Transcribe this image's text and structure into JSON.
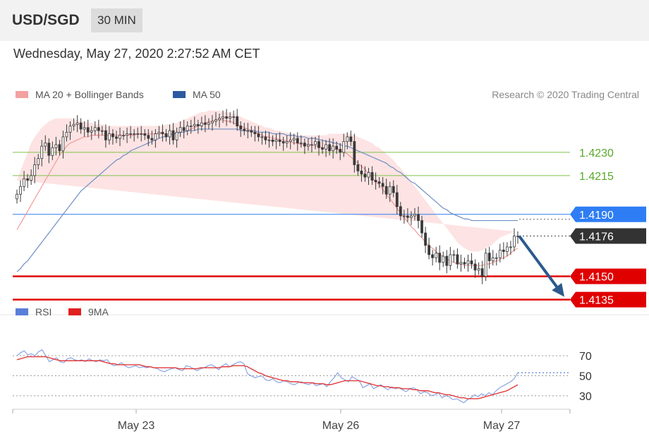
{
  "header": {
    "pair": "USD/SGD",
    "timeframe": "30 MIN"
  },
  "datetime": "Wednesday, May 27, 2020 2:27:52 AM CET",
  "colors": {
    "bullish_candle": "#3a3a3a",
    "ma20_band": "#f4a0a0",
    "ma50": "#2c5aa0",
    "support": "#e00000",
    "resistance": "#7dc34a",
    "pivot": "#2f7df5",
    "price_tag": "#333333",
    "rsi": "#5a7fd8",
    "rsi_ma": "#e02020",
    "arrow": "#2c5a8c"
  },
  "chart_data": [
    {
      "type": "candlestick",
      "title": "USD/SGD",
      "legend": [
        {
          "name": "MA 20 + Bollinger Bands",
          "color": "#f4a0a0"
        },
        {
          "name": "MA 50",
          "color": "#2c5aa0"
        }
      ],
      "legend_position": "top-left",
      "attribution": "Research © 2020 Trading Central",
      "x_ticks": [
        "May 23",
        "May 26",
        "May 27"
      ],
      "ylim": [
        1.4128,
        1.426
      ],
      "current_price": 1.4176,
      "levels": [
        {
          "value": 1.423,
          "label": "1.4230",
          "kind": "resistance"
        },
        {
          "value": 1.4215,
          "label": "1.4215",
          "kind": "resistance"
        },
        {
          "value": 1.419,
          "label": "1.4190",
          "kind": "pivot"
        },
        {
          "value": 1.4176,
          "label": "1.4176",
          "kind": "current"
        },
        {
          "value": 1.415,
          "label": "1.4150",
          "kind": "support"
        },
        {
          "value": 1.4135,
          "label": "1.4135",
          "kind": "support"
        }
      ],
      "forecast_arrow": {
        "from": 1.4176,
        "to": 1.4135
      },
      "close": [
        1.4203,
        1.4208,
        1.4213,
        1.4212,
        1.4215,
        1.4222,
        1.4226,
        1.4234,
        1.4236,
        1.4228,
        1.4233,
        1.4235,
        1.4231,
        1.424,
        1.4243,
        1.4247,
        1.4248,
        1.4249,
        1.4245,
        1.4246,
        1.4243,
        1.4244,
        1.4246,
        1.4244,
        1.4244,
        1.4238,
        1.4242,
        1.424,
        1.4239,
        1.4241,
        1.4241,
        1.4242,
        1.4242,
        1.4242,
        1.4242,
        1.4242,
        1.4241,
        1.4239,
        1.4238,
        1.4242,
        1.4243,
        1.4242,
        1.424,
        1.4244,
        1.4238,
        1.4243,
        1.4246,
        1.4244,
        1.4247,
        1.4247,
        1.4248,
        1.4247,
        1.4249,
        1.4248,
        1.4249,
        1.425,
        1.4251,
        1.4252,
        1.4253,
        1.4252,
        1.4253,
        1.4253,
        1.4247,
        1.4245,
        1.4244,
        1.4244,
        1.4243,
        1.4242,
        1.424,
        1.424,
        1.4238,
        1.4238,
        1.4237,
        1.4238,
        1.4237,
        1.4236,
        1.4237,
        1.4238,
        1.4239,
        1.4236,
        1.4236,
        1.4234,
        1.4235,
        1.4235,
        1.4237,
        1.4233,
        1.4232,
        1.4235,
        1.4231,
        1.4234,
        1.4232,
        1.423,
        1.4237,
        1.424,
        1.4237,
        1.4222,
        1.4218,
        1.4216,
        1.4214,
        1.4217,
        1.4212,
        1.4211,
        1.421,
        1.4208,
        1.4203,
        1.4208,
        1.4204,
        1.4195,
        1.4189,
        1.4189,
        1.4188,
        1.4189,
        1.419,
        1.4186,
        1.4178,
        1.417,
        1.4164,
        1.4162,
        1.4165,
        1.4159,
        1.4163,
        1.4157,
        1.4164,
        1.4164,
        1.4158,
        1.4159,
        1.4158,
        1.416,
        1.4158,
        1.4154,
        1.4155,
        1.415,
        1.4165,
        1.416,
        1.4162,
        1.4162,
        1.4167,
        1.4166,
        1.4169,
        1.4169,
        1.4176,
        1.4176
      ],
      "ma20": [
        1.418,
        1.4184,
        1.4188,
        1.4192,
        1.4196,
        1.42,
        1.4204,
        1.4208,
        1.4212,
        1.4216,
        1.422,
        1.4224,
        1.4228,
        1.4231,
        1.4234,
        1.4236,
        1.4237,
        1.4238,
        1.4239,
        1.424,
        1.424,
        1.4241,
        1.4241,
        1.4241,
        1.4241,
        1.4241,
        1.4241,
        1.4241,
        1.4241,
        1.4241,
        1.4241,
        1.4241,
        1.4241,
        1.4241,
        1.4242,
        1.4242,
        1.4242,
        1.4242,
        1.4242,
        1.4242,
        1.4242,
        1.4242,
        1.4242,
        1.4242,
        1.4242,
        1.4243,
        1.4243,
        1.4243,
        1.4244,
        1.4245,
        1.4246,
        1.4247,
        1.4248,
        1.4249,
        1.425,
        1.425,
        1.4251,
        1.4251,
        1.4251,
        1.425,
        1.425,
        1.4249,
        1.4248,
        1.4247,
        1.4246,
        1.4245,
        1.4244,
        1.4243,
        1.4242,
        1.4241,
        1.424,
        1.424,
        1.4239,
        1.4239,
        1.4238,
        1.4238,
        1.4237,
        1.4237,
        1.4236,
        1.4236,
        1.4235,
        1.4235,
        1.4235,
        1.4235,
        1.4234,
        1.4234,
        1.4233,
        1.4233,
        1.4233,
        1.4232,
        1.4232,
        1.4231,
        1.423,
        1.4229,
        1.4227,
        1.4225,
        1.4223,
        1.4221,
        1.4219,
        1.4216,
        1.4214,
        1.4211,
        1.4209,
        1.4206,
        1.4203,
        1.42,
        1.4197,
        1.4194,
        1.4191,
        1.4188,
        1.4185,
        1.4182,
        1.418,
        1.4177,
        1.4175,
        1.4172,
        1.417,
        1.4168,
        1.4166,
        1.4164,
        1.4163,
        1.4161,
        1.416,
        1.4159,
        1.4158,
        1.4158,
        1.4157,
        1.4157,
        1.4157,
        1.4157,
        1.4157,
        1.4157,
        1.4158,
        1.4158,
        1.4159,
        1.416,
        1.4161,
        1.4162,
        1.4163,
        1.4165,
        1.4167,
        1.4168
      ],
      "bb_upper": [
        1.4212,
        1.4218,
        1.4224,
        1.423,
        1.4236,
        1.424,
        1.4243,
        1.4246,
        1.4248,
        1.425,
        1.4251,
        1.4252,
        1.4252,
        1.4252,
        1.4252,
        1.4252,
        1.4251,
        1.4251,
        1.425,
        1.425,
        1.4249,
        1.4249,
        1.4248,
        1.4248,
        1.4248,
        1.4247,
        1.4247,
        1.4247,
        1.4247,
        1.4247,
        1.4247,
        1.4247,
        1.4247,
        1.4247,
        1.4247,
        1.4247,
        1.4247,
        1.4247,
        1.4247,
        1.4247,
        1.4247,
        1.4247,
        1.4248,
        1.4248,
        1.4248,
        1.4249,
        1.425,
        1.4251,
        1.4252,
        1.4253,
        1.4254,
        1.4255,
        1.4256,
        1.4256,
        1.4257,
        1.4257,
        1.4257,
        1.4257,
        1.4256,
        1.4256,
        1.4255,
        1.4255,
        1.4254,
        1.4253,
        1.4252,
        1.4251,
        1.425,
        1.4249,
        1.4248,
        1.4247,
        1.4246,
        1.4246,
        1.4245,
        1.4244,
        1.4244,
        1.4243,
        1.4243,
        1.4242,
        1.4242,
        1.4241,
        1.4241,
        1.4241,
        1.4241,
        1.4241,
        1.4241,
        1.4241,
        1.4241,
        1.4241,
        1.4242,
        1.4242,
        1.4242,
        1.4242,
        1.4242,
        1.4242,
        1.4242,
        1.4241,
        1.424,
        1.4239,
        1.4238,
        1.4237,
        1.4236,
        1.4234,
        1.4233,
        1.4231,
        1.4229,
        1.4227,
        1.4225,
        1.4222,
        1.422,
        1.4217,
        1.4214,
        1.4211,
        1.4208,
        1.4205,
        1.4202,
        1.4199,
        1.4196,
        1.4193,
        1.419,
        1.4187,
        1.4184,
        1.4181,
        1.4178,
        1.4175,
        1.4172,
        1.417,
        1.4168,
        1.4167,
        1.4166,
        1.4166,
        1.4166,
        1.4167,
        1.4168,
        1.4169,
        1.4171,
        1.4173,
        1.4175,
        1.4176,
        1.4177,
        1.4178,
        1.4179
      ],
      "bb_lower": [
        1.4148,
        1.415,
        1.4153,
        1.4157,
        1.4162,
        1.4168,
        1.4175,
        1.4182,
        1.4189,
        1.4196,
        1.4203,
        1.421,
        1.4216,
        1.4221,
        1.4225,
        1.4228,
        1.423,
        1.4231,
        1.4232,
        1.4233,
        1.4234,
        1.4234,
        1.4235,
        1.4235,
        1.4235,
        1.4235,
        1.4235,
        1.4235,
        1.4235,
        1.4235,
        1.4235,
        1.4235,
        1.4235,
        1.4236,
        1.4236,
        1.4236,
        1.4236,
        1.4236,
        1.4236,
        1.4236,
        1.4236,
        1.4236,
        1.4236,
        1.4236,
        1.4236,
        1.4237,
        1.4237,
        1.4237,
        1.4238,
        1.4238,
        1.4239,
        1.4239,
        1.424,
        1.424,
        1.424,
        1.424,
        1.424,
        1.424,
        1.424,
        1.4239,
        1.4239,
        1.4238,
        1.4238,
        1.4237,
        1.4236,
        1.4235,
        1.4234,
        1.4233,
        1.4232,
        1.4231,
        1.423,
        1.4229,
        1.4229,
        1.4228,
        1.4228,
        1.4227,
        1.4227,
        1.4226,
        1.4226,
        1.4225,
        1.4225,
        1.4224,
        1.4224,
        1.4223,
        1.4222,
        1.4221,
        1.422,
        1.4219,
        1.4218,
        1.4216,
        1.4214,
        1.4212,
        1.4209,
        1.4206,
        1.4203,
        1.42,
        1.4197,
        1.4194,
        1.4191,
        1.4188,
        1.4185,
        1.4182,
        1.4179,
        1.4176,
        1.4173,
        1.417,
        1.4167,
        1.4164,
        1.4161,
        1.4158,
        1.4156,
        1.4154,
        1.4152,
        1.4151,
        1.415,
        1.4149,
        1.4148,
        1.4148,
        1.4148,
        1.4148,
        1.4148,
        1.4148,
        1.4148,
        1.4148,
        1.4148,
        1.4148,
        1.4148,
        1.4149,
        1.4149,
        1.4149,
        1.415,
        1.415,
        1.415,
        1.415,
        1.4151,
        1.4151,
        1.4151,
        1.4152,
        1.4152,
        1.4152,
        1.4152,
        1.4152
      ],
      "ma50": [
        1.4153,
        1.4155,
        1.4158,
        1.416,
        1.4163,
        1.4166,
        1.4169,
        1.4172,
        1.4175,
        1.4178,
        1.4181,
        1.4184,
        1.4187,
        1.419,
        1.4193,
        1.4196,
        1.4199,
        1.4202,
        1.4205,
        1.4207,
        1.4209,
        1.4211,
        1.4213,
        1.4215,
        1.4217,
        1.4219,
        1.4221,
        1.4223,
        1.4225,
        1.4226,
        1.4228,
        1.4229,
        1.4231,
        1.4232,
        1.4233,
        1.4234,
        1.4235,
        1.4236,
        1.4237,
        1.4238,
        1.4239,
        1.424,
        1.424,
        1.4241,
        1.4242,
        1.4242,
        1.4243,
        1.4243,
        1.4244,
        1.4244,
        1.4244,
        1.4245,
        1.4245,
        1.4245,
        1.4245,
        1.4245,
        1.4245,
        1.4245,
        1.4245,
        1.4245,
        1.4245,
        1.4245,
        1.4245,
        1.4244,
        1.4244,
        1.4244,
        1.4244,
        1.4244,
        1.4243,
        1.4243,
        1.4243,
        1.4243,
        1.4242,
        1.4242,
        1.4242,
        1.4242,
        1.4241,
        1.4241,
        1.4241,
        1.424,
        1.424,
        1.424,
        1.4239,
        1.4239,
        1.4239,
        1.4238,
        1.4238,
        1.4237,
        1.4237,
        1.4236,
        1.4236,
        1.4235,
        1.4234,
        1.4234,
        1.4233,
        1.4232,
        1.4231,
        1.423,
        1.4229,
        1.4228,
        1.4227,
        1.4226,
        1.4225,
        1.4224,
        1.4223,
        1.4221,
        1.422,
        1.4218,
        1.4217,
        1.4215,
        1.4213,
        1.4211,
        1.421,
        1.4208,
        1.4206,
        1.4204,
        1.4202,
        1.42,
        1.4198,
        1.4196,
        1.4194,
        1.4193,
        1.4191,
        1.419,
        1.4189,
        1.4188,
        1.4187,
        1.4187,
        1.4186,
        1.4186,
        1.4186,
        1.4186,
        1.4186,
        1.4186,
        1.4186,
        1.4186,
        1.4186,
        1.4186,
        1.4186,
        1.4186,
        1.4186,
        1.4186
      ]
    },
    {
      "type": "line",
      "legend": [
        {
          "name": "RSI",
          "color": "#5a7fd8"
        },
        {
          "name": "9MA",
          "color": "#e02020"
        }
      ],
      "ylim": [
        20,
        80
      ],
      "y_ticks": [
        70,
        50,
        30
      ],
      "series": [
        {
          "name": "RSI",
          "values": [
            70,
            73,
            75,
            71,
            72,
            70,
            74,
            76,
            70,
            64,
            66,
            68,
            64,
            63,
            67,
            68,
            66,
            65,
            66,
            64,
            67,
            65,
            64,
            66,
            65,
            66,
            62,
            60,
            61,
            63,
            60,
            58,
            59,
            60,
            58,
            59,
            58,
            59,
            58,
            57,
            55,
            54,
            56,
            57,
            58,
            56,
            55,
            60,
            59,
            57,
            55,
            57,
            58,
            60,
            61,
            59,
            56,
            60,
            62,
            59,
            61,
            63,
            64,
            62,
            52,
            50,
            48,
            49,
            50,
            46,
            45,
            47,
            44,
            43,
            45,
            44,
            42,
            41,
            43,
            44,
            42,
            41,
            43,
            40,
            41,
            42,
            39,
            44,
            48,
            53,
            48,
            46,
            44,
            49,
            47,
            45,
            38,
            40,
            42,
            37,
            39,
            41,
            38,
            36,
            39,
            37,
            38,
            36,
            34,
            37,
            38,
            36,
            32,
            34,
            33,
            30,
            31,
            33,
            28,
            30,
            29,
            26,
            27,
            25,
            23,
            26,
            28,
            31,
            29,
            32,
            30,
            33,
            31,
            35,
            38,
            40,
            42,
            44,
            47,
            53
          ]
        },
        {
          "name": "9MA",
          "values": [
            66,
            67,
            68,
            69,
            69,
            69,
            69,
            69,
            69,
            68,
            67,
            66,
            65,
            65,
            65,
            65,
            65,
            65,
            65,
            65,
            65,
            65,
            65,
            65,
            64,
            63,
            62,
            62,
            61,
            61,
            61,
            61,
            61,
            61,
            61,
            60,
            59,
            59,
            58,
            58,
            58,
            58,
            58,
            58,
            58,
            57,
            57,
            57,
            57,
            57,
            57,
            58,
            58,
            58,
            58,
            58,
            58,
            59,
            59,
            59,
            60,
            60,
            60,
            60,
            59,
            57,
            55,
            53,
            52,
            50,
            49,
            48,
            47,
            46,
            45,
            45,
            44,
            44,
            44,
            43,
            43,
            43,
            43,
            42,
            42,
            42,
            41,
            41,
            42,
            43,
            44,
            45,
            45,
            45,
            45,
            45,
            44,
            43,
            42,
            41,
            40,
            40,
            39,
            39,
            38,
            38,
            38,
            37,
            37,
            37,
            36,
            36,
            35,
            35,
            35,
            34,
            33,
            33,
            32,
            31,
            31,
            30,
            29,
            28,
            28,
            27,
            27,
            27,
            27,
            28,
            29,
            30,
            31,
            32,
            33,
            34,
            35,
            37,
            39,
            41
          ]
        }
      ]
    }
  ]
}
